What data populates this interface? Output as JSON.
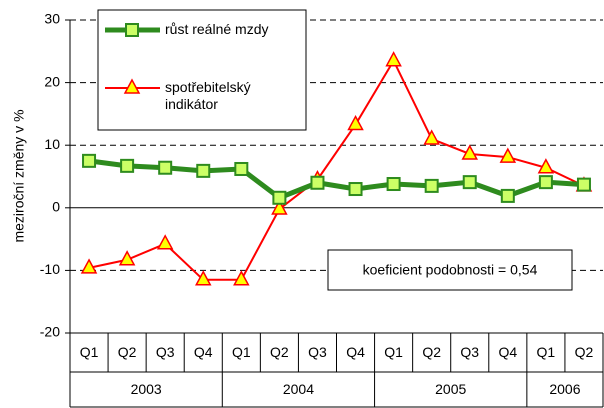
{
  "chart_data": {
    "type": "line",
    "y_label": "meziroční změny v %",
    "categories": [
      "Q1",
      "Q2",
      "Q3",
      "Q4",
      "Q1",
      "Q2",
      "Q3",
      "Q4",
      "Q1",
      "Q2",
      "Q3",
      "Q4",
      "Q1",
      "Q2"
    ],
    "year_groups": [
      {
        "label": "2003",
        "count": 4
      },
      {
        "label": "2004",
        "count": 4
      },
      {
        "label": "2005",
        "count": 4
      },
      {
        "label": "2006",
        "count": 2
      }
    ],
    "series": [
      {
        "name": "růst reálné mzdy",
        "color": "#2e8b1e",
        "marker": "square",
        "marker_fill": "#ccff66",
        "values": [
          7.5,
          6.7,
          6.4,
          5.9,
          6.2,
          1.6,
          4.0,
          3.0,
          3.8,
          3.5,
          4.1,
          1.9,
          4.1,
          3.7
        ]
      },
      {
        "name": "spotřebitelský indikátor",
        "color": "#ff0000",
        "marker": "triangle",
        "marker_fill": "#ffff00",
        "values": [
          -9.6,
          -8.3,
          -5.75,
          -11.5,
          -11.5,
          -0.2,
          4.5,
          13.3,
          23.5,
          11.0,
          8.6,
          8.1,
          6.4,
          3.5
        ]
      }
    ],
    "annotation": "koeficient podobnosti = 0,54",
    "ylim": [
      -20,
      30
    ],
    "yticks": [
      -20,
      -10,
      0,
      10,
      20,
      30
    ],
    "grid": true
  }
}
